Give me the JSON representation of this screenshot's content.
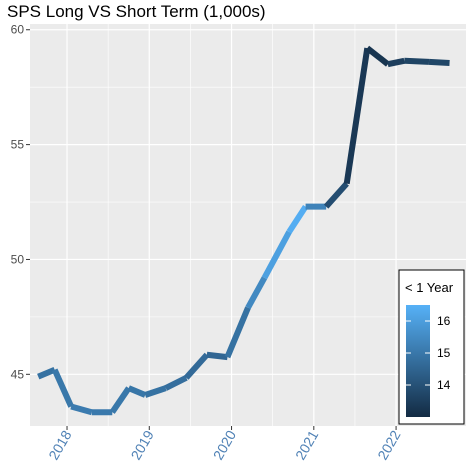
{
  "chart_data": {
    "type": "line",
    "title": "SPS Long VS Short Term (1,000s)",
    "xlabel": "",
    "ylabel": "",
    "x_ticks": [
      "2018",
      "2019",
      "2020",
      "2021",
      "2022"
    ],
    "y_ticks": [
      45,
      50,
      55,
      60
    ],
    "xlim": [
      2017.55,
      2022.85
    ],
    "ylim": [
      42.75,
      60.25
    ],
    "grid": true,
    "background": "#ebebeb",
    "x": [
      2017.65,
      2017.85,
      2018.05,
      2018.3,
      2018.55,
      2018.75,
      2018.95,
      2019.2,
      2019.45,
      2019.7,
      2019.95,
      2020.2,
      2020.4,
      2020.7,
      2020.9,
      2021.15,
      2021.4,
      2021.65,
      2021.9,
      2022.1,
      2022.4,
      2022.65
    ],
    "y": [
      44.9,
      45.2,
      43.6,
      43.35,
      43.35,
      44.4,
      44.1,
      44.4,
      44.85,
      45.85,
      45.75,
      47.9,
      49.2,
      51.2,
      52.3,
      52.3,
      53.3,
      59.2,
      58.5,
      58.65,
      58.6,
      58.55
    ],
    "color_values": [
      14.8,
      14.9,
      15.1,
      15.1,
      15.0,
      15.0,
      14.9,
      14.8,
      14.7,
      14.6,
      14.5,
      15.2,
      15.7,
      16.4,
      16.4,
      14.2,
      13.6,
      13.1,
      13.4,
      13.6,
      13.7,
      13.7
    ],
    "legend": {
      "title": "< 1 Year",
      "ticks": [
        14,
        15,
        16
      ],
      "range": [
        13.0,
        16.5
      ],
      "low_color": "#132b43",
      "high_color": "#56b1f7",
      "position": "bottom-right"
    }
  }
}
